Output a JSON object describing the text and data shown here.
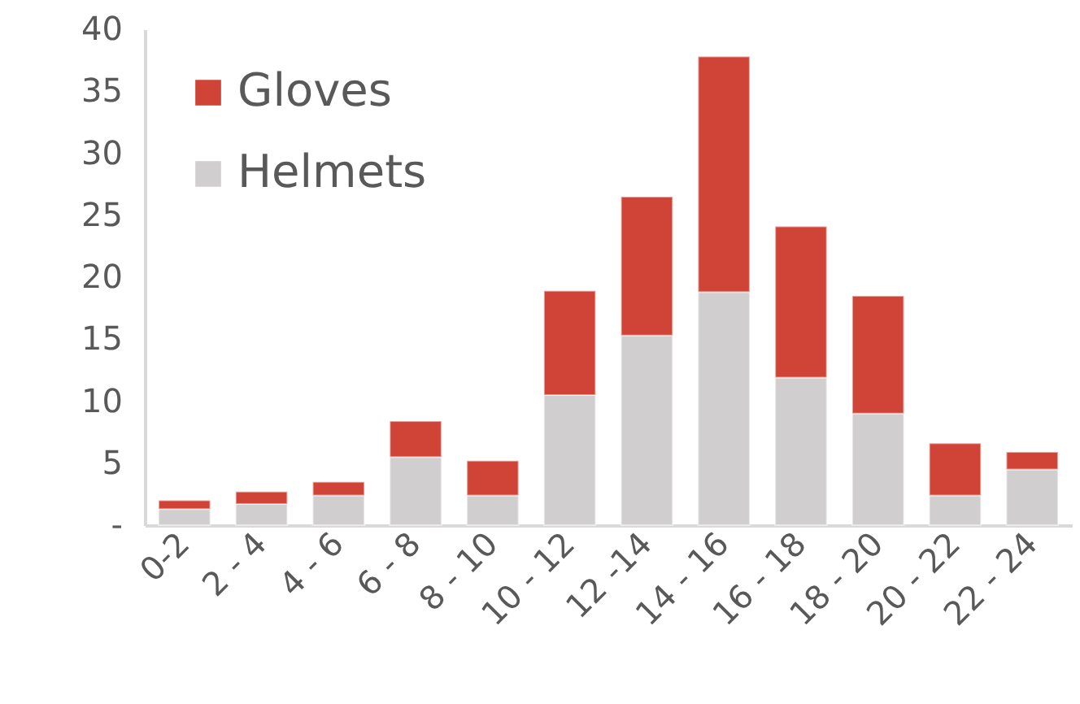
{
  "chart_data": {
    "type": "bar",
    "stacked": true,
    "categories": [
      "0-2",
      "2 - 4",
      "4 - 6",
      "6 - 8",
      "8 - 10",
      "10 - 12",
      "12 -14",
      "14 - 16",
      "16 - 18",
      "18 - 20",
      "20 - 22",
      "22 - 24"
    ],
    "series": [
      {
        "name": "Helmets",
        "color": "#d0cecf",
        "values": [
          1.3,
          1.7,
          2.4,
          5.5,
          2.4,
          10.5,
          15.3,
          18.8,
          11.9,
          9.0,
          2.4,
          4.5
        ]
      },
      {
        "name": "Gloves",
        "color": "#d04437",
        "values": [
          0.7,
          1.0,
          1.1,
          2.9,
          2.8,
          8.4,
          11.2,
          19.0,
          12.2,
          9.5,
          4.2,
          1.4
        ]
      }
    ],
    "ylim": [
      0,
      40
    ],
    "yticks": [
      {
        "value": 0,
        "label": "-"
      },
      5,
      10,
      15,
      20,
      25,
      30,
      35,
      40
    ],
    "grid": false,
    "legend": "top left"
  }
}
